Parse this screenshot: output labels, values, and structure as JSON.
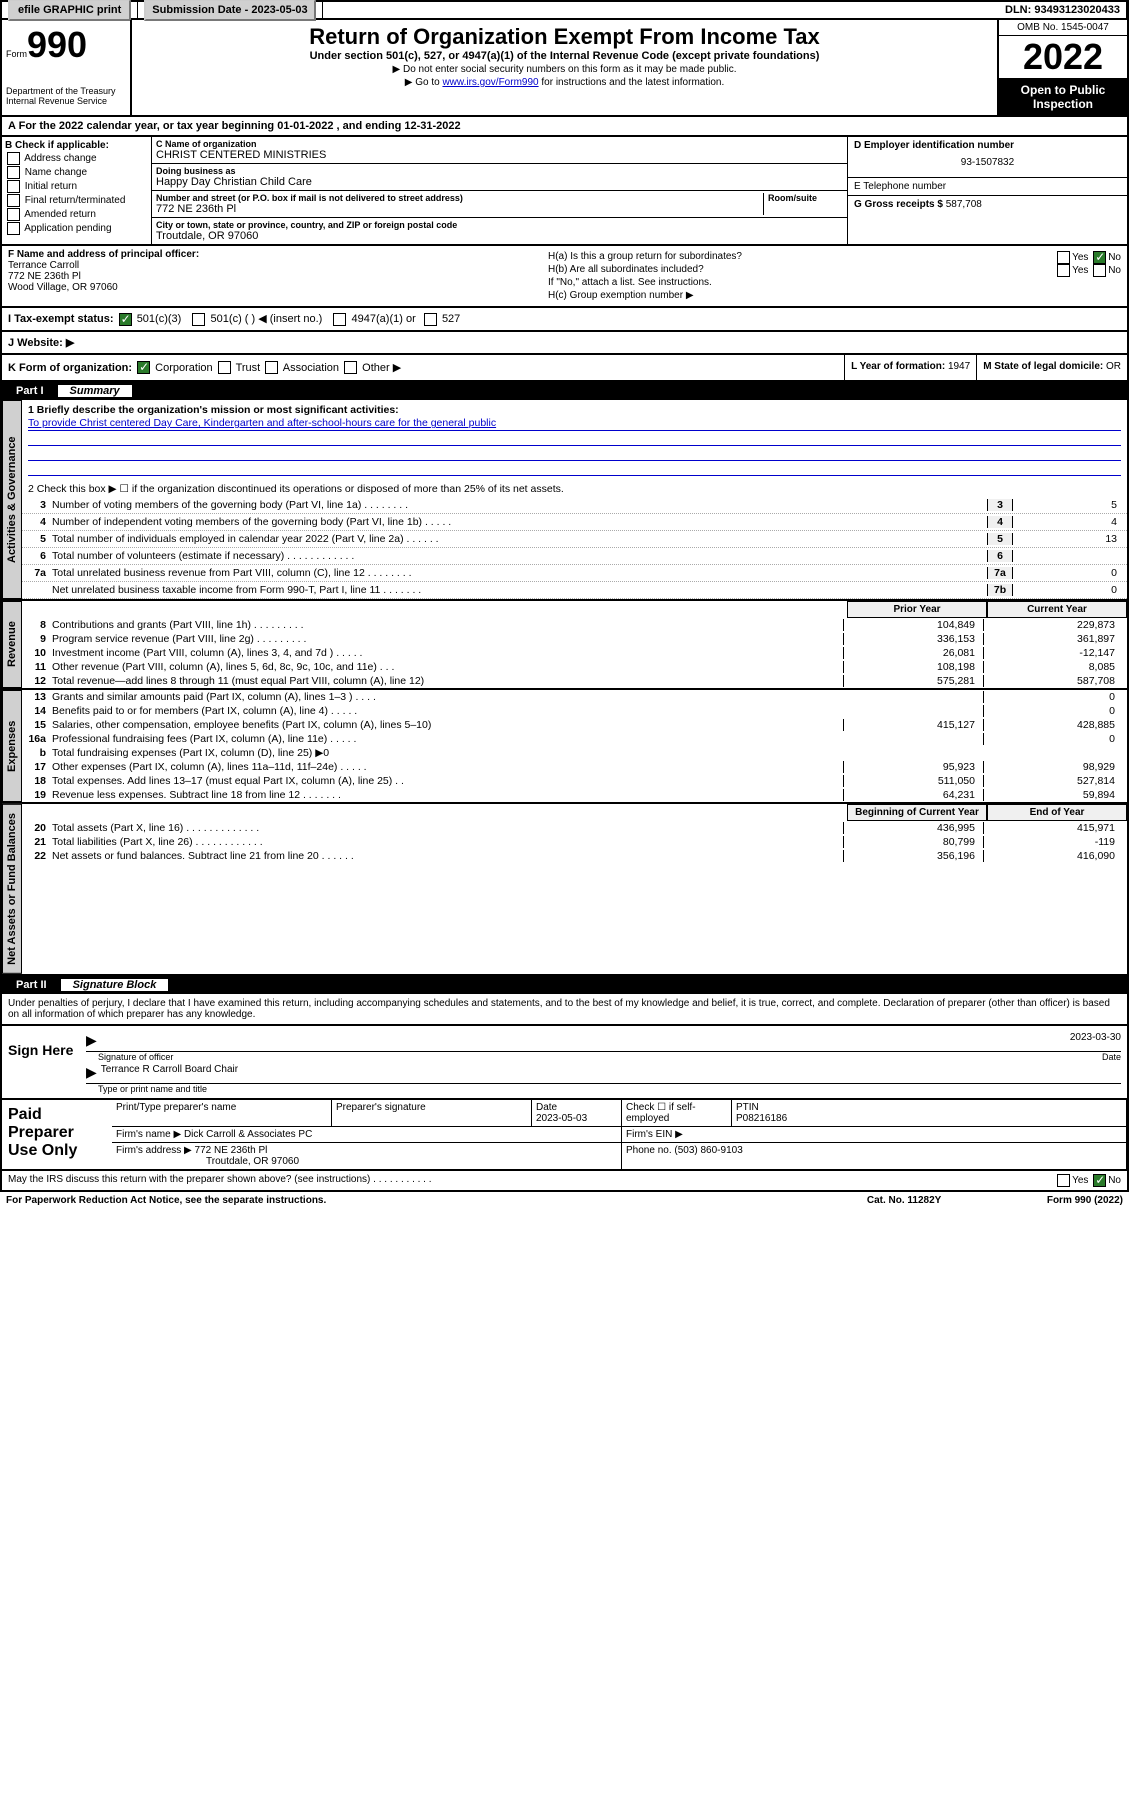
{
  "topbar": {
    "efile": "efile GRAPHIC print",
    "submission_label": "Submission Date - ",
    "submission_date": "2023-05-03",
    "dln_label": "DLN: ",
    "dln": "93493123020433"
  },
  "header": {
    "form_word": "Form",
    "form_num": "990",
    "dept": "Department of the Treasury\nInternal Revenue Service",
    "title": "Return of Organization Exempt From Income Tax",
    "subtitle": "Under section 501(c), 527, or 4947(a)(1) of the Internal Revenue Code (except private foundations)",
    "note1": "▶ Do not enter social security numbers on this form as it may be made public.",
    "note2_pre": "▶ Go to ",
    "note2_link": "www.irs.gov/Form990",
    "note2_post": " for instructions and the latest information.",
    "omb": "OMB No. 1545-0047",
    "year": "2022",
    "open": "Open to Public Inspection"
  },
  "taxyear": "For the 2022 calendar year, or tax year beginning 01-01-2022    , and ending 12-31-2022",
  "checkb": {
    "label": "B Check if applicable:",
    "opts": [
      "Address change",
      "Name change",
      "Initial return",
      "Final return/terminated",
      "Amended return",
      "Application pending"
    ]
  },
  "entityC": {
    "name_label": "C Name of organization",
    "name": "CHRIST CENTERED MINISTRIES",
    "dba_label": "Doing business as",
    "dba": "Happy Day Christian Child Care",
    "addr_label": "Number and street (or P.O. box if mail is not delivered to street address)",
    "room_label": "Room/suite",
    "addr": "772 NE 236th Pl",
    "city_label": "City or town, state or province, country, and ZIP or foreign postal code",
    "city": "Troutdale, OR  97060"
  },
  "entityD": {
    "label": "D Employer identification number",
    "val": "93-1507832"
  },
  "entityE": {
    "label": "E Telephone number",
    "val": ""
  },
  "entityG": {
    "label": "G Gross receipts $",
    "val": "587,708"
  },
  "officer": {
    "label": "F  Name and address of principal officer:",
    "name": "Terrance Carroll",
    "addr1": "772 NE 236th Pl",
    "addr2": "Wood Village, OR  97060"
  },
  "groupH": {
    "ha": "H(a)  Is this a group return for subordinates?",
    "hb": "H(b)  Are all subordinates included?",
    "hb_note": "If \"No,\" attach a list. See instructions.",
    "hc": "H(c)  Group exemption number ▶",
    "yes": "Yes",
    "no": "No"
  },
  "statusI": {
    "label": "I   Tax-exempt status:",
    "o1": "501(c)(3)",
    "o2": "501(c) (   ) ◀ (insert no.)",
    "o3": "4947(a)(1) or",
    "o4": "527"
  },
  "websiteJ": {
    "label": "J   Website: ▶"
  },
  "rowK": {
    "label": "K Form of organization:",
    "opts": [
      "Corporation",
      "Trust",
      "Association",
      "Other ▶"
    ],
    "l_label": "L Year of formation: ",
    "l_val": "1947",
    "m_label": "M State of legal domicile: ",
    "m_val": "OR"
  },
  "part1": {
    "num": "Part I",
    "title": "Summary"
  },
  "mission_label": "1   Briefly describe the organization's mission or most significant activities:",
  "mission": "To provide Christ centered Day Care, Kindergarten and after-school-hours care for the general public",
  "line2": "2   Check this box ▶ ☐  if the organization discontinued its operations or disposed of more than 25% of its net assets.",
  "govlines": [
    {
      "n": "3",
      "d": "Number of voting members of the governing body (Part VI, line 1a)   .    .    .    .    .    .    .    .",
      "b": "3",
      "v": "5"
    },
    {
      "n": "4",
      "d": "Number of independent voting members of the governing body (Part VI, line 1b)  .    .    .    .    .",
      "b": "4",
      "v": "4"
    },
    {
      "n": "5",
      "d": "Total number of individuals employed in calendar year 2022 (Part V, line 2a)   .    .    .    .    .    .",
      "b": "5",
      "v": "13"
    },
    {
      "n": "6",
      "d": "Total number of volunteers (estimate if necessary)   .    .    .    .    .    .    .    .    .    .    .    .",
      "b": "6",
      "v": ""
    },
    {
      "n": "7a",
      "d": "Total unrelated business revenue from Part VIII, column (C), line 12   .    .    .    .    .    .    .    .",
      "b": "7a",
      "v": "0"
    },
    {
      "n": "",
      "d": "Net unrelated business taxable income from Form 990-T, Part I, line 11   .    .    .    .    .    .    .",
      "b": "7b",
      "v": "0"
    }
  ],
  "colhdr": {
    "prior": "Prior Year",
    "curr": "Current Year"
  },
  "revenue": [
    {
      "n": "8",
      "d": "Contributions and grants (Part VIII, line 1h)  .    .    .    .    .    .    .    .    .",
      "p": "104,849",
      "c": "229,873"
    },
    {
      "n": "9",
      "d": "Program service revenue (Part VIII, line 2g)  .    .    .    .    .    .    .    .    .",
      "p": "336,153",
      "c": "361,897"
    },
    {
      "n": "10",
      "d": "Investment income (Part VIII, column (A), lines 3, 4, and 7d )  .    .    .    .    .",
      "p": "26,081",
      "c": "-12,147"
    },
    {
      "n": "11",
      "d": "Other revenue (Part VIII, column (A), lines 5, 6d, 8c, 9c, 10c, and 11e)   .    .    .",
      "p": "108,198",
      "c": "8,085"
    },
    {
      "n": "12",
      "d": "Total revenue—add lines 8 through 11 (must equal Part VIII, column (A), line 12)",
      "p": "575,281",
      "c": "587,708"
    }
  ],
  "expenses": [
    {
      "n": "13",
      "d": "Grants and similar amounts paid (Part IX, column (A), lines 1–3 )  .    .    .    .",
      "p": "",
      "c": "0"
    },
    {
      "n": "14",
      "d": "Benefits paid to or for members (Part IX, column (A), line 4)  .    .    .    .    .",
      "p": "",
      "c": "0"
    },
    {
      "n": "15",
      "d": "Salaries, other compensation, employee benefits (Part IX, column (A), lines 5–10)",
      "p": "415,127",
      "c": "428,885"
    },
    {
      "n": "16a",
      "d": "Professional fundraising fees (Part IX, column (A), line 11e)  .    .    .    .    .",
      "p": "",
      "c": "0"
    },
    {
      "n": "b",
      "d": "Total fundraising expenses (Part IX, column (D), line 25) ▶0",
      "p": "",
      "c": ""
    },
    {
      "n": "17",
      "d": "Other expenses (Part IX, column (A), lines 11a–11d, 11f–24e)  .    .    .    .    .",
      "p": "95,923",
      "c": "98,929"
    },
    {
      "n": "18",
      "d": "Total expenses. Add lines 13–17 (must equal Part IX, column (A), line 25)   .    .",
      "p": "511,050",
      "c": "527,814"
    },
    {
      "n": "19",
      "d": "Revenue less expenses. Subtract line 18 from line 12  .    .    .    .    .    .    .",
      "p": "64,231",
      "c": "59,894"
    }
  ],
  "netassets_hdr": {
    "beg": "Beginning of Current Year",
    "end": "End of Year"
  },
  "netassets": [
    {
      "n": "20",
      "d": "Total assets (Part X, line 16)  .    .    .    .    .    .    .    .    .    .    .    .    .",
      "p": "436,995",
      "c": "415,971"
    },
    {
      "n": "21",
      "d": "Total liabilities (Part X, line 26)  .    .    .    .    .    .    .    .    .    .    .    .",
      "p": "80,799",
      "c": "-119"
    },
    {
      "n": "22",
      "d": "Net assets or fund balances. Subtract line 21 from line 20  .    .    .    .    .    .",
      "p": "356,196",
      "c": "416,090"
    }
  ],
  "part2": {
    "num": "Part II",
    "title": "Signature Block"
  },
  "perjury": "Under penalties of perjury, I declare that I have examined this return, including accompanying schedules and statements, and to the best of my knowledge and belief, it is true, correct, and complete. Declaration of preparer (other than officer) is based on all information of which preparer has any knowledge.",
  "sign": {
    "here": "Sign Here",
    "sig_label": "Signature of officer",
    "date_label": "Date",
    "date": "2023-03-30",
    "name": "Terrance R Carroll  Board Chair",
    "name_label": "Type or print name and title"
  },
  "paid": {
    "title": "Paid Preparer Use Only",
    "h_name": "Print/Type preparer's name",
    "h_sig": "Preparer's signature",
    "h_date": "Date",
    "date": "2023-05-03",
    "h_check": "Check ☐ if self-employed",
    "h_ptin": "PTIN",
    "ptin": "P08216186",
    "firm_label": "Firm's name    ▶",
    "firm": "Dick Carroll & Associates PC",
    "ein_label": "Firm's EIN ▶",
    "addr_label": "Firm's address ▶",
    "addr1": "772 NE 236th Pl",
    "addr2": "Troutdale, OR  97060",
    "phone_label": "Phone no. ",
    "phone": "(503) 860-9103"
  },
  "discuss": "May the IRS discuss this return with the preparer shown above? (see instructions)    .    .    .    .    .    .    .    .    .    .    .",
  "footer": {
    "pra": "For Paperwork Reduction Act Notice, see the separate instructions.",
    "cat": "Cat. No. 11282Y",
    "form": "Form 990 (2022)"
  },
  "vtabs": {
    "gov": "Activities & Governance",
    "rev": "Revenue",
    "exp": "Expenses",
    "net": "Net Assets or Fund Balances"
  }
}
